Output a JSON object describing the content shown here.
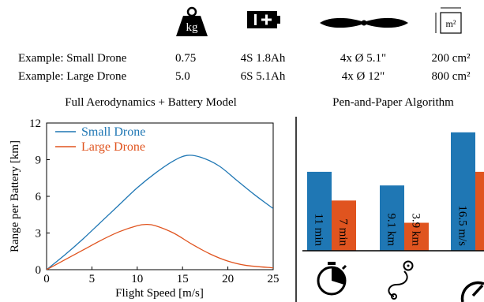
{
  "header": {
    "icons": [
      "weight-icon",
      "battery-icon",
      "propeller-icon",
      "area-icon"
    ],
    "weight_icon_label": "kg",
    "area_icon_label": "m²",
    "rows": [
      {
        "label": "Example: Small Drone",
        "mass": "0.75",
        "battery": "4S 1.8Ah",
        "props": "4x Ø 5.1\"",
        "area": "200 cm²"
      },
      {
        "label": "Example: Large Drone",
        "mass": "5.0",
        "battery": "6S 5.1Ah",
        "props": "4x Ø 12\"",
        "area": "800 cm²"
      }
    ]
  },
  "colors": {
    "small": "#1f77b4",
    "large": "#e0541f"
  },
  "chart_data": [
    {
      "type": "line",
      "title": "Full Aerodynamics + Battery Model",
      "xlabel": "Flight Speed [m/s]",
      "ylabel": "Range per Battery [km]",
      "xlim": [
        0,
        25
      ],
      "ylim": [
        0,
        12
      ],
      "xticks": [
        0,
        5,
        10,
        15,
        20,
        25
      ],
      "yticks": [
        0,
        3,
        6,
        9,
        12
      ],
      "grid": false,
      "legend": "top-left",
      "series": [
        {
          "name": "Small Drone",
          "color": "#1f77b4",
          "x": [
            0,
            2,
            4,
            6,
            8,
            10,
            12,
            14,
            15.5,
            17,
            19,
            21,
            23,
            25
          ],
          "y": [
            0,
            1.2,
            2.5,
            3.9,
            5.3,
            6.7,
            7.9,
            8.9,
            9.35,
            9.2,
            8.5,
            7.3,
            6.1,
            5.0
          ]
        },
        {
          "name": "Large Drone",
          "color": "#e0541f",
          "x": [
            0,
            2,
            4,
            6,
            8,
            10,
            11,
            12,
            14,
            16,
            18,
            20,
            22,
            25
          ],
          "y": [
            0,
            0.8,
            1.6,
            2.4,
            3.1,
            3.6,
            3.7,
            3.6,
            3.0,
            2.1,
            1.3,
            0.7,
            0.35,
            0.15
          ]
        }
      ]
    },
    {
      "type": "bar",
      "title": "Pen-and-Paper Algorithm",
      "categories": [
        "flight-time",
        "range",
        "speed"
      ],
      "category_icons": [
        "stopwatch-icon",
        "route-icon",
        "speedometer-icon"
      ],
      "series": [
        {
          "name": "Small Drone",
          "color": "#1f77b4",
          "values": [
            11,
            9.1,
            16.5
          ],
          "labels": [
            "11 min",
            "9.1 km",
            "16.5 m/s"
          ]
        },
        {
          "name": "Large Drone",
          "color": "#e0541f",
          "values": [
            7,
            3.9,
            11
          ],
          "labels": [
            "7 min",
            "3.9 km",
            ""
          ]
        }
      ]
    }
  ]
}
